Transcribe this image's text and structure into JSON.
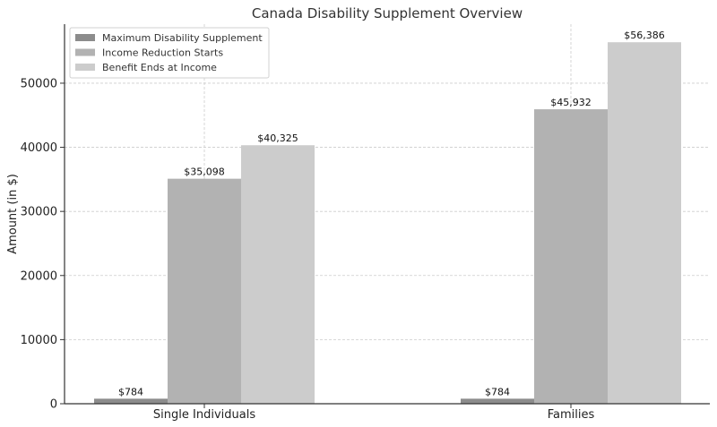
{
  "chart_data": {
    "type": "bar",
    "title": "Canada Disability Supplement Overview",
    "xlabel": "",
    "ylabel": "Amount (in $)",
    "categories": [
      "Single Individuals",
      "Families"
    ],
    "series": [
      {
        "name": "Maximum Disability Supplement",
        "values": [
          784,
          784
        ],
        "labels": [
          "$784",
          "$784"
        ],
        "color": "#8c8c8c"
      },
      {
        "name": "Income Reduction Starts",
        "values": [
          35098,
          45932
        ],
        "labels": [
          "$35,098",
          "$45,932"
        ],
        "color": "#b2b2b2"
      },
      {
        "name": "Benefit Ends at Income",
        "values": [
          40325,
          56386
        ],
        "labels": [
          "$40,325",
          "$56,386"
        ],
        "color": "#cccccc"
      }
    ],
    "ylim": [
      0,
      59208
    ],
    "yticks": [
      0,
      10000,
      20000,
      30000,
      40000,
      50000
    ],
    "ytick_labels": [
      "0",
      "10000",
      "20000",
      "30000",
      "40000",
      "50000"
    ],
    "grid": true,
    "legend_position": "top-left"
  }
}
